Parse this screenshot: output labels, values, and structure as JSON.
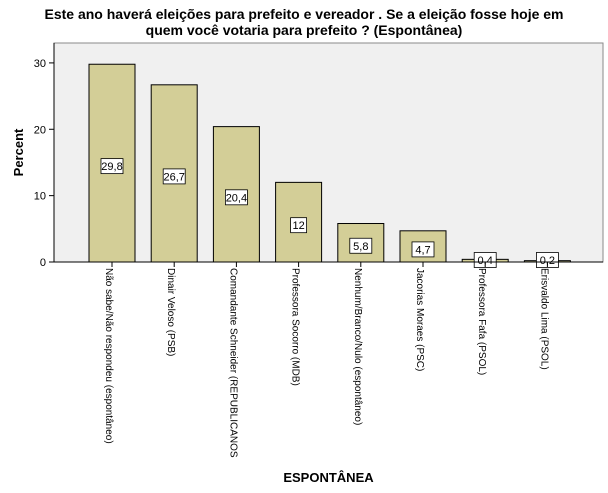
{
  "chart_data": {
    "type": "bar",
    "title_lines": [
      "Este ano haverá eleições para prefeito e vereador . Se a eleição fosse hoje em",
      "quem você votaria para prefeito ? (Espontânea)"
    ],
    "xlabel": "ESPONTÂNEA",
    "ylabel": "Percent",
    "ylim": [
      0,
      33
    ],
    "yticks": [
      0,
      10,
      20,
      30
    ],
    "categories": [
      "Não sabe/Não respondeu (espontâneo)",
      "Dinair Veloso (PSB)",
      "Comandante Schneider (REPUBLICANOS",
      "Professora Socorro (MDB)",
      "Nenhum/Branco/Nulo (espontâneo)",
      "Jacorias Moraes (PSC)",
      "Professora Fafa (PSOL)",
      "Erisvaldo Lima (PSOL)"
    ],
    "values": [
      29.8,
      26.7,
      20.4,
      12,
      5.8,
      4.7,
      0.4,
      0.2
    ],
    "value_labels": [
      "29,8",
      "26,7",
      "20,4",
      "12",
      "5,8",
      "4,7",
      "0,4",
      "0,2"
    ],
    "grid": false,
    "colors": {
      "bar_fill": "#d3ce97",
      "bar_stroke": "#000000",
      "plot_background": "#f0f0f0",
      "axis": "#000000"
    }
  }
}
